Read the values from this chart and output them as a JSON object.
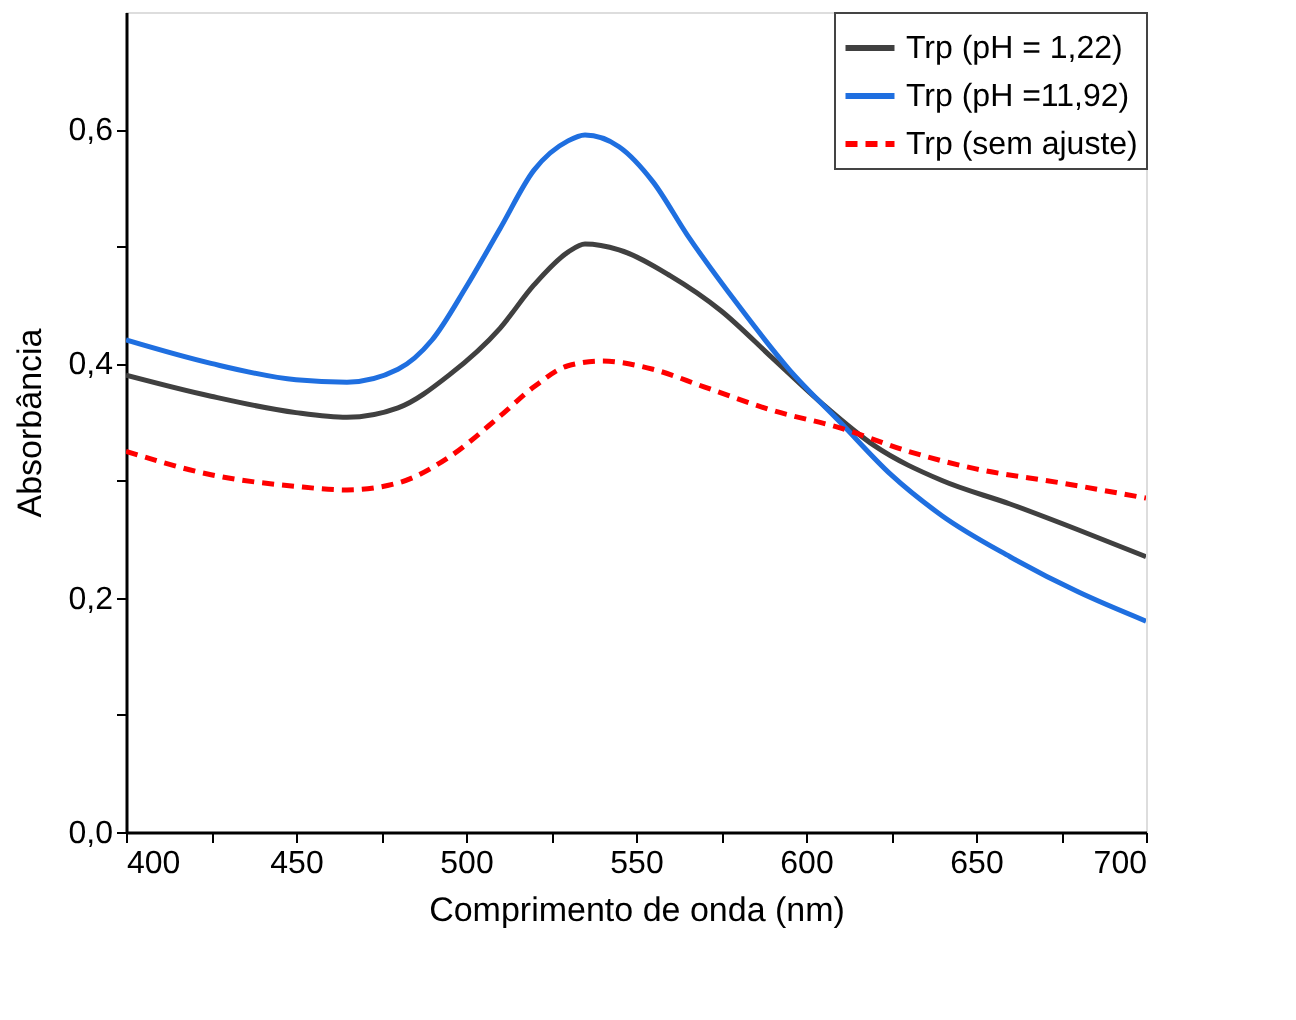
{
  "chart_data": {
    "type": "line",
    "xlabel": "Comprimento de onda (nm)",
    "ylabel": "Absorbância",
    "xlim": [
      400,
      700
    ],
    "xticks": [
      400,
      {
        "value": 425,
        "label": null
      },
      450,
      {
        "value": 475,
        "label": null
      },
      500,
      {
        "value": 525,
        "label": null
      },
      550,
      {
        "value": 575,
        "label": null
      },
      600,
      {
        "value": 625,
        "label": null
      },
      650,
      {
        "value": 675,
        "label": null
      },
      700
    ],
    "ylim": [
      0,
      0.7
    ],
    "yticks": [
      {
        "value": 0,
        "label": "0,0"
      },
      {
        "value": 0.1,
        "label": null
      },
      {
        "value": 0.2,
        "label": "0,2"
      },
      {
        "value": 0.3,
        "label": null
      },
      {
        "value": 0.4,
        "label": "0,4"
      },
      {
        "value": 0.5,
        "label": null
      },
      {
        "value": 0.6,
        "label": "0,6"
      }
    ],
    "grid": false,
    "legend": "top right",
    "marker": "none",
    "series": [
      {
        "name": "Trp (pH = 1,22)",
        "color": "#404040",
        "line_style": "solid",
        "x": [
          400,
          425,
          450,
          465,
          480,
          495,
          510,
          520,
          530,
          535,
          545,
          560,
          575,
          590,
          605,
          620,
          640,
          660,
          680,
          700
        ],
        "values": [
          0.39,
          0.372,
          0.358,
          0.354,
          0.362,
          0.39,
          0.43,
          0.467,
          0.495,
          0.502,
          0.497,
          0.475,
          0.445,
          0.405,
          0.365,
          0.33,
          0.3,
          0.28,
          0.258,
          0.235
        ]
      },
      {
        "name": "Trp (pH =11,92)",
        "color": "#1f6fe0",
        "line_style": "solid",
        "x": [
          400,
          425,
          450,
          465,
          480,
          490,
          500,
          510,
          520,
          530,
          535,
          545,
          555,
          565,
          580,
          595,
          610,
          625,
          640,
          660,
          680,
          700
        ],
        "values": [
          0.42,
          0.4,
          0.386,
          0.384,
          0.395,
          0.42,
          0.465,
          0.515,
          0.565,
          0.59,
          0.595,
          0.585,
          0.555,
          0.51,
          0.45,
          0.395,
          0.35,
          0.305,
          0.27,
          0.235,
          0.205,
          0.18
        ]
      },
      {
        "name": "Trp (sem ajuste)",
        "color": "#ff0000",
        "line_style": "dashed",
        "x": [
          400,
          425,
          450,
          465,
          480,
          495,
          510,
          520,
          530,
          540,
          555,
          570,
          590,
          610,
          630,
          650,
          675,
          700
        ],
        "values": [
          0.325,
          0.305,
          0.295,
          0.292,
          0.298,
          0.32,
          0.355,
          0.38,
          0.398,
          0.402,
          0.395,
          0.38,
          0.36,
          0.345,
          0.325,
          0.31,
          0.298,
          0.285
        ]
      }
    ]
  }
}
